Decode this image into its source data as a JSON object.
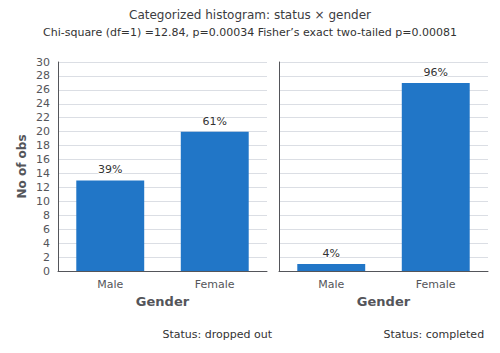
{
  "title": "Categorized histogram: status × gender",
  "subtitle": "Chi-square (df=1) =12.84, p=0.00034 Fisher’s exact two-tailed p=0.00081",
  "chart_data": [
    {
      "type": "bar",
      "subtitle": "Status: dropped out",
      "xlabel": "Gender",
      "ylabel": "No of obs",
      "categories": [
        "Male",
        "Female"
      ],
      "values": [
        13,
        20
      ],
      "annotations": [
        "39%",
        "61%"
      ],
      "color": "#2176c7",
      "ylim": [
        0,
        30
      ],
      "yticks": [
        0,
        2,
        4,
        6,
        8,
        10,
        12,
        14,
        16,
        18,
        20,
        22,
        24,
        26,
        28,
        30
      ],
      "grid": true
    },
    {
      "type": "bar",
      "subtitle": "Status: completed",
      "xlabel": "Gender",
      "categories": [
        "Male",
        "Female"
      ],
      "values": [
        1,
        27
      ],
      "annotations": [
        "4%",
        "96%"
      ],
      "color": "#2176c7",
      "ylim": [
        0,
        30
      ],
      "yticks": [
        0,
        2,
        4,
        6,
        8,
        10,
        12,
        14,
        16,
        18,
        20,
        22,
        24,
        26,
        28,
        30
      ],
      "grid": true,
      "tick_labels": "x"
    }
  ]
}
